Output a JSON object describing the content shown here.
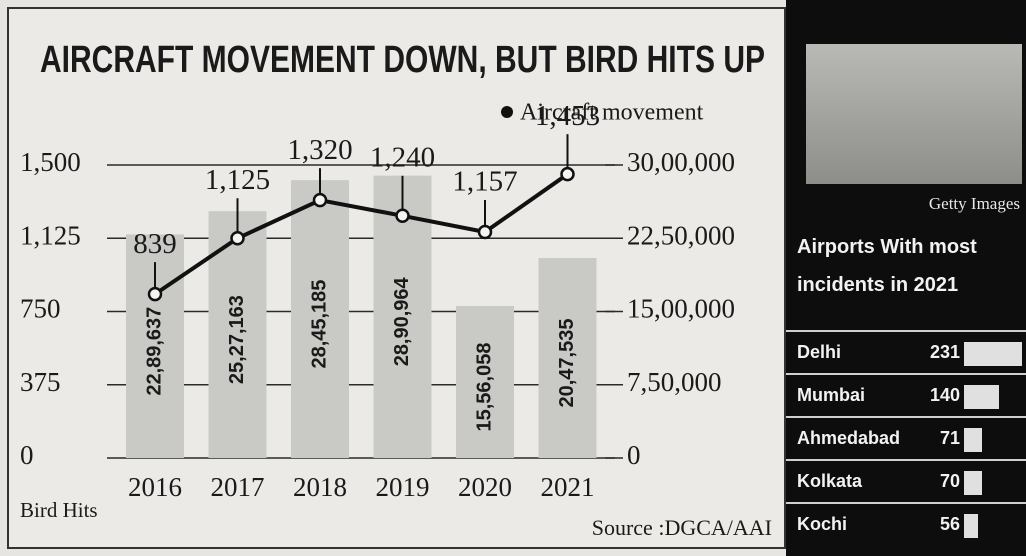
{
  "chart_data": [
    {
      "type": "bar-line",
      "title": "AIRCRAFT MOVEMENT DOWN, BUT BIRD HITS UP",
      "categories": [
        "2016",
        "2017",
        "2018",
        "2019",
        "2020",
        "2021"
      ],
      "series": [
        {
          "name": "Aircraft movement",
          "type": "bar",
          "axis": "y2",
          "color": "#c9c9c6",
          "values": [
            2289637,
            2527163,
            2845185,
            2890964,
            1556058,
            2047535
          ],
          "value_labels": [
            "22,89,637",
            "25,27,163",
            "28,45,185",
            "28,90,964",
            "15,56,058",
            "20,47,535"
          ]
        },
        {
          "type": "line",
          "color": "#111111",
          "values": [
            839,
            1125,
            1320,
            1240,
            1157,
            1453
          ],
          "value_labels": [
            "839",
            "1,125",
            "1,320",
            "1,240",
            "1,157",
            "1,453"
          ]
        }
      ],
      "ylabel": "Bird Hits",
      "ylim": [
        0,
        1500
      ],
      "yticks": [
        0,
        375,
        750,
        {
          "value": 1125,
          "label": "1,125"
        },
        {
          "value": 1500,
          "label": "1,500"
        }
      ],
      "y2lim": [
        0,
        3000000
      ],
      "y2ticks": [
        0,
        {
          "value": 750000,
          "label": "7,50,000"
        },
        {
          "value": 1500000,
          "label": "15,00,000"
        },
        {
          "value": 2250000,
          "label": "22,50,000"
        },
        {
          "value": 3000000,
          "label": "30,00,000"
        }
      ],
      "grid": true,
      "source": "Source :DGCA/AAI"
    },
    {
      "type": "hbar",
      "title": "Airports With most incidents in 2021",
      "categories": [
        "Delhi",
        "Mumbai",
        "Ahmedabad",
        "Kolkata",
        "Kochi"
      ],
      "values": [
        231,
        140,
        71,
        70,
        56
      ],
      "color": "#e0e0e0"
    }
  ],
  "photo_credit": "Getty Images"
}
